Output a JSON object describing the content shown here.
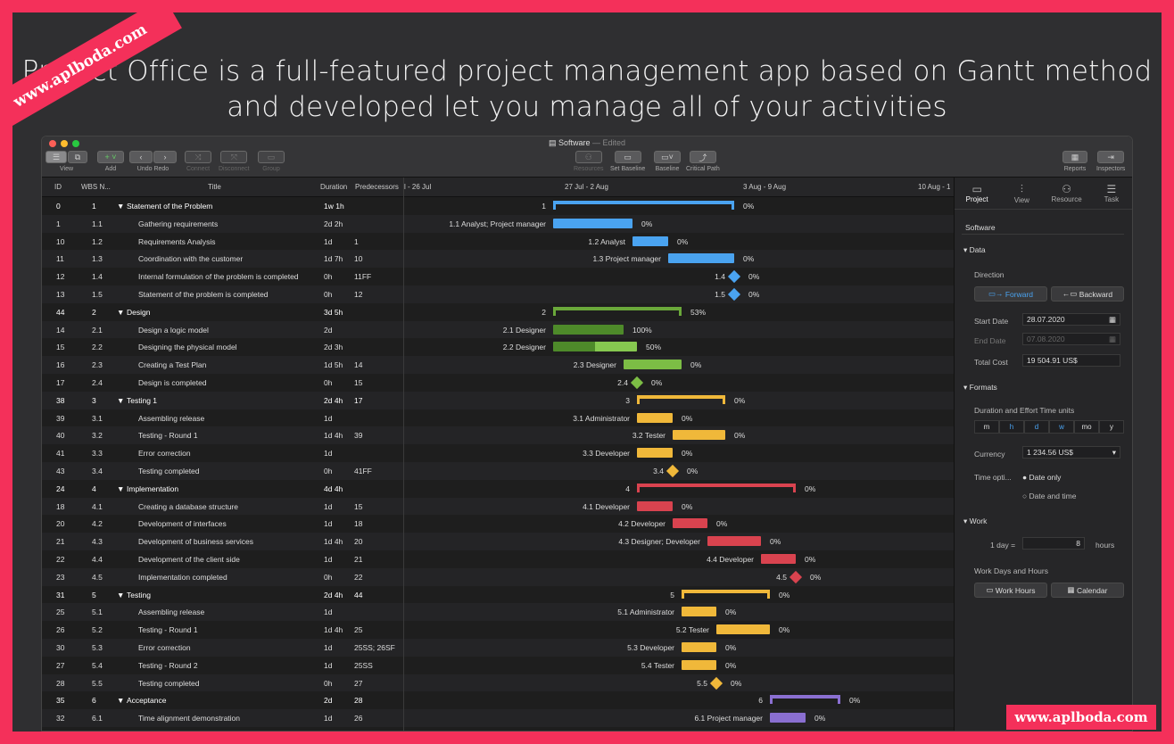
{
  "banner": {
    "ribbon_text": "www.aplboda.com",
    "line1": "Project Office is a full-featured project management app based on Gantt method",
    "line2": "and developed  let you manage all of your activities",
    "watermark": "www.aplboda.com"
  },
  "window": {
    "title": "Software",
    "edited": "— Edited"
  },
  "toolbar": {
    "view": "View",
    "add": "Add",
    "undo": "Undo",
    "redo": "Redo",
    "connect": "Connect",
    "disconnect": "Disconnect",
    "group": "Group",
    "resources": "Resources",
    "set_baseline": "Set Baseline",
    "baseline": "Baseline",
    "critical_path": "Critical Path",
    "reports": "Reports",
    "inspectors": "Inspectors"
  },
  "columns": {
    "id": "ID",
    "wbs": "WBS N...",
    "title": "Title",
    "duration": "Duration",
    "predecessors": "Predecessors"
  },
  "timeline": [
    "l - 26 Jul",
    "27 Jul - 2 Aug",
    "3 Aug - 9 Aug",
    "10 Aug - 1"
  ],
  "tasks": [
    {
      "id": "0",
      "wbs": "1",
      "title": "Statement of the Problem",
      "dur": "1w 1h",
      "pred": "",
      "sum": true,
      "color": "#4aa3f0",
      "start": 168,
      "end": 371,
      "label": "1",
      "pct": "0%"
    },
    {
      "id": "1",
      "wbs": "1.1",
      "title": "Gathering requirements",
      "dur": "2d 2h",
      "pred": "",
      "color": "#4aa3f0",
      "start": 168,
      "end": 257,
      "label": "1.1   Analyst; Project manager",
      "pct": "0%"
    },
    {
      "id": "10",
      "wbs": "1.2",
      "title": "Requirements Analysis",
      "dur": "1d",
      "pred": "1",
      "color": "#4aa3f0",
      "start": 257,
      "end": 297,
      "label": "1.2   Analyst",
      "pct": "0%"
    },
    {
      "id": "11",
      "wbs": "1.3",
      "title": "Coordination with the customer",
      "dur": "1d 7h",
      "pred": "10",
      "color": "#4aa3f0",
      "start": 297,
      "end": 371,
      "label": "1.3   Project manager",
      "pct": "0%"
    },
    {
      "id": "12",
      "wbs": "1.4",
      "title": "Internal formulation of the problem is completed",
      "dur": "0h",
      "pred": "11FF",
      "color": "#4aa3f0",
      "milestone": true,
      "start": 371,
      "label": "1.4",
      "pct": "0%"
    },
    {
      "id": "13",
      "wbs": "1.5",
      "title": "Statement of the problem is completed",
      "dur": "0h",
      "pred": "12",
      "color": "#4aa3f0",
      "milestone": true,
      "start": 371,
      "label": "1.5",
      "pct": "0%"
    },
    {
      "id": "44",
      "wbs": "2",
      "title": "Design",
      "dur": "3d 5h",
      "pred": "",
      "sum": true,
      "color": "#6aa83a",
      "start": 168,
      "end": 312,
      "label": "2",
      "pct": "53%"
    },
    {
      "id": "14",
      "wbs": "2.1",
      "title": "Design a logic model",
      "dur": "2d",
      "pred": "",
      "color": "#6aa83a",
      "start": 168,
      "end": 247,
      "done": 1,
      "label": "2.1   Designer",
      "pct": "100%"
    },
    {
      "id": "15",
      "wbs": "2.2",
      "title": "Designing the physical model",
      "dur": "2d 3h",
      "pred": "",
      "color": "#6aa83a",
      "start": 168,
      "end": 262,
      "done": 0.5,
      "label": "2.2   Designer",
      "pct": "50%"
    },
    {
      "id": "16",
      "wbs": "2.3",
      "title": "Creating a Test Plan",
      "dur": "1d 5h",
      "pred": "14",
      "color": "#7cbd45",
      "start": 247,
      "end": 312,
      "label": "2.3   Designer",
      "pct": "0%"
    },
    {
      "id": "17",
      "wbs": "2.4",
      "title": "Design is completed",
      "dur": "0h",
      "pred": "15",
      "color": "#7cbd45",
      "milestone": true,
      "start": 262,
      "label": "2.4",
      "pct": "0%"
    },
    {
      "id": "38",
      "wbs": "3",
      "title": "Testing 1",
      "dur": "2d 4h",
      "pred": "17",
      "sum": true,
      "color": "#f0b83a",
      "start": 262,
      "end": 361,
      "label": "3",
      "pct": "0%"
    },
    {
      "id": "39",
      "wbs": "3.1",
      "title": "Assembling release",
      "dur": "1d",
      "pred": "",
      "color": "#f0b83a",
      "start": 262,
      "end": 302,
      "label": "3.1   Administrator",
      "pct": "0%"
    },
    {
      "id": "40",
      "wbs": "3.2",
      "title": "Testing - Round 1",
      "dur": "1d 4h",
      "pred": "39",
      "color": "#f0b83a",
      "start": 302,
      "end": 361,
      "label": "3.2   Tester",
      "pct": "0%"
    },
    {
      "id": "41",
      "wbs": "3.3",
      "title": "Error correction",
      "dur": "1d",
      "pred": "",
      "color": "#f0b83a",
      "start": 262,
      "end": 302,
      "label": "3.3   Developer",
      "pct": "0%"
    },
    {
      "id": "43",
      "wbs": "3.4",
      "title": "Testing completed",
      "dur": "0h",
      "pred": "41FF",
      "color": "#f0b83a",
      "milestone": true,
      "start": 302,
      "label": "3.4",
      "pct": "0%"
    },
    {
      "id": "24",
      "wbs": "4",
      "title": "Implementation",
      "dur": "4d 4h",
      "pred": "",
      "sum": true,
      "color": "#d9434f",
      "start": 262,
      "end": 440,
      "label": "4",
      "pct": "0%"
    },
    {
      "id": "18",
      "wbs": "4.1",
      "title": "Creating a database structure",
      "dur": "1d",
      "pred": "15",
      "color": "#d9434f",
      "start": 262,
      "end": 302,
      "label": "4.1   Developer",
      "pct": "0%"
    },
    {
      "id": "20",
      "wbs": "4.2",
      "title": "Development of interfaces",
      "dur": "1d",
      "pred": "18",
      "color": "#d9434f",
      "start": 302,
      "end": 341,
      "label": "4.2   Developer",
      "pct": "0%"
    },
    {
      "id": "21",
      "wbs": "4.3",
      "title": "Development of business services",
      "dur": "1d 4h",
      "pred": "20",
      "color": "#d9434f",
      "start": 341,
      "end": 401,
      "label": "4.3   Designer; Developer",
      "pct": "0%"
    },
    {
      "id": "22",
      "wbs": "4.4",
      "title": "Development of the client side",
      "dur": "1d",
      "pred": "21",
      "color": "#d9434f",
      "start": 401,
      "end": 440,
      "label": "4.4   Developer",
      "pct": "0%"
    },
    {
      "id": "23",
      "wbs": "4.5",
      "title": "Implementation completed",
      "dur": "0h",
      "pred": "22",
      "color": "#d9434f",
      "milestone": true,
      "start": 440,
      "label": "4.5",
      "pct": "0%"
    },
    {
      "id": "31",
      "wbs": "5",
      "title": "Testing",
      "dur": "2d 4h",
      "pred": "44",
      "sum": true,
      "color": "#f0b83a",
      "start": 312,
      "end": 411,
      "label": "5",
      "pct": "0%"
    },
    {
      "id": "25",
      "wbs": "5.1",
      "title": "Assembling release",
      "dur": "1d",
      "pred": "",
      "color": "#f0b83a",
      "start": 312,
      "end": 351,
      "label": "5.1   Administrator",
      "pct": "0%"
    },
    {
      "id": "26",
      "wbs": "5.2",
      "title": "Testing - Round 1",
      "dur": "1d 4h",
      "pred": "25",
      "color": "#f0b83a",
      "start": 351,
      "end": 411,
      "label": "5.2   Tester",
      "pct": "0%"
    },
    {
      "id": "30",
      "wbs": "5.3",
      "title": "Error correction",
      "dur": "1d",
      "pred": "25SS; 26SF",
      "color": "#f0b83a",
      "start": 312,
      "end": 351,
      "label": "5.3   Developer",
      "pct": "0%"
    },
    {
      "id": "27",
      "wbs": "5.4",
      "title": "Testing - Round 2",
      "dur": "1d",
      "pred": "25SS",
      "color": "#f0b83a",
      "start": 312,
      "end": 351,
      "label": "5.4   Tester",
      "pct": "0%"
    },
    {
      "id": "28",
      "wbs": "5.5",
      "title": "Testing completed",
      "dur": "0h",
      "pred": "27",
      "color": "#f0b83a",
      "milestone": true,
      "start": 351,
      "label": "5.5",
      "pct": "0%"
    },
    {
      "id": "35",
      "wbs": "6",
      "title": "Acceptance",
      "dur": "2d",
      "pred": "28",
      "sum": true,
      "color": "#8a6fd1",
      "start": 411,
      "end": 490,
      "label": "6",
      "pct": "0%"
    },
    {
      "id": "32",
      "wbs": "6.1",
      "title": "Time alignment demonstration",
      "dur": "1d",
      "pred": "26",
      "color": "#8a6fd1",
      "start": 411,
      "end": 451,
      "label": "6.1   Project manager",
      "pct": "0%"
    }
  ],
  "inspector": {
    "tabs": [
      "Project",
      "View",
      "Resource",
      "Task"
    ],
    "project_name": "Software",
    "data_section": "Data",
    "direction_label": "Direction",
    "forward": "Forward",
    "backward": "Backward",
    "start_date_label": "Start Date",
    "start_date": "28.07.2020",
    "end_date_label": "End Date",
    "end_date": "07.08.2020",
    "total_cost_label": "Total Cost",
    "total_cost": "19 504.91 US$",
    "formats_section": "Formats",
    "units_label": "Duration and Effort Time units",
    "units": [
      "m",
      "h",
      "d",
      "w",
      "mo",
      "y"
    ],
    "currency_label": "Currency",
    "currency": "1 234.56 US$",
    "time_options_label": "Time opti...",
    "date_only": "Date only",
    "date_and_time": "Date and time",
    "work_section": "Work",
    "day_label": "1 day =",
    "day_hours": "8",
    "hours": "hours",
    "work_days_label": "Work Days and Hours",
    "work_hours_btn": "Work Hours",
    "calendar_btn": "Calendar"
  }
}
